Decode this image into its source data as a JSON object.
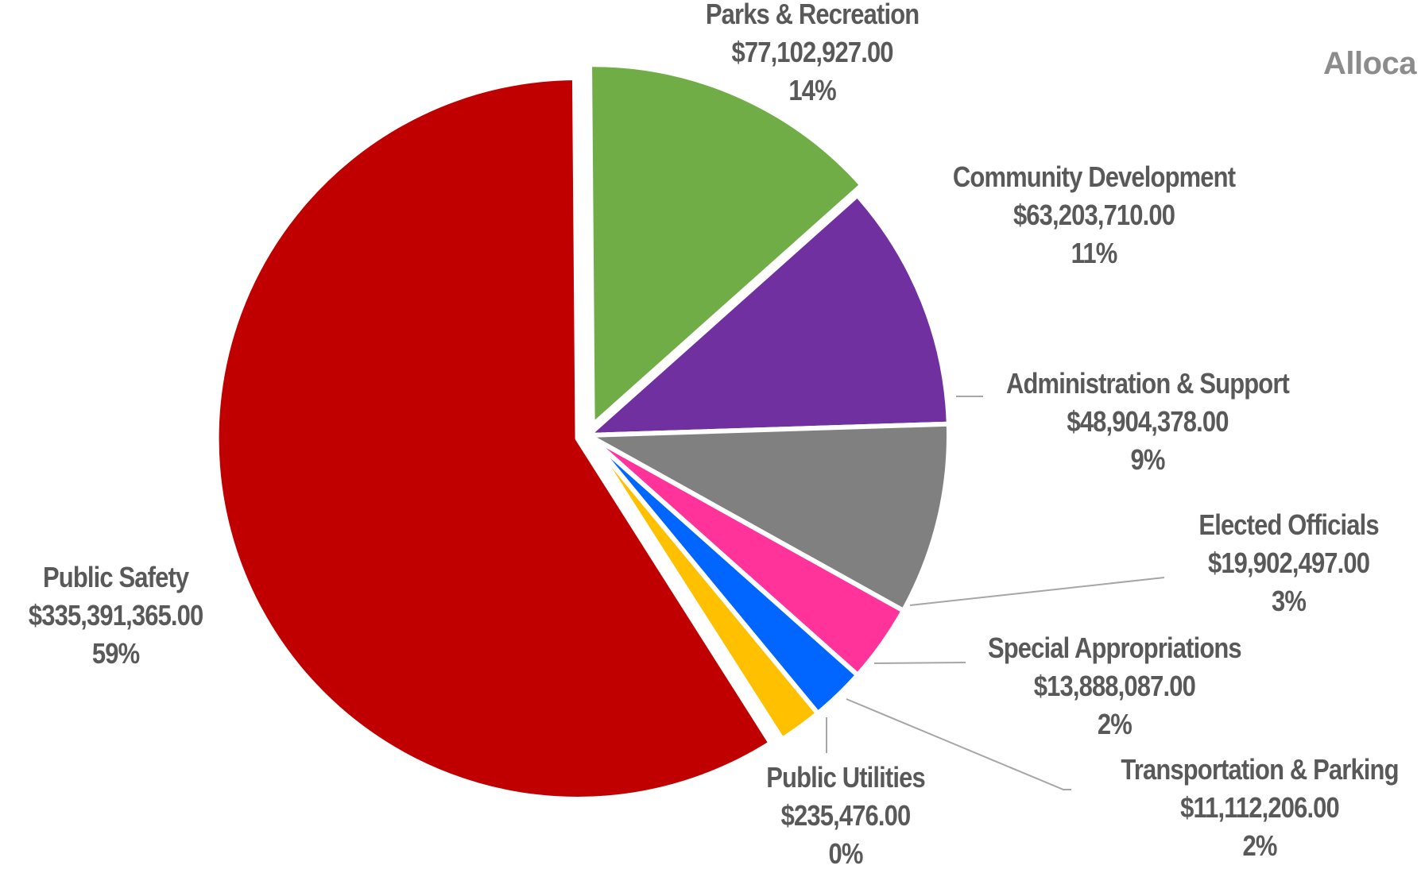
{
  "title": "Alloca",
  "chart_data": {
    "type": "pie",
    "title": "Alloca",
    "slices": [
      {
        "name": "Parks & Recreation",
        "value": 77102927.0,
        "amount": "$77,102,927.00",
        "percent": "14%",
        "color": "#70ad47"
      },
      {
        "name": "Community Development",
        "value": 63203710.0,
        "amount": "$63,203,710.00",
        "percent": "11%",
        "color": "#7030a0"
      },
      {
        "name": "Administration & Support",
        "value": 48904378.0,
        "amount": "$48,904,378.00",
        "percent": "9%",
        "color": "#808080"
      },
      {
        "name": "Elected Officials",
        "value": 19902497.0,
        "amount": "$19,902,497.00",
        "percent": "3%",
        "color": "#ff3399"
      },
      {
        "name": "Special Appropriations",
        "value": 13888087.0,
        "amount": "$13,888,087.00",
        "percent": "2%",
        "color": "#0066ff"
      },
      {
        "name": "Transportation & Parking",
        "value": 11112206.0,
        "amount": "$11,112,206.00",
        "percent": "2%",
        "color": "#ffc000"
      },
      {
        "name": "Public Utilities",
        "value": 235476.0,
        "amount": "$235,476.00",
        "percent": "0%",
        "color": "#00b0f0"
      },
      {
        "name": "Public Safety",
        "value": 335391365.0,
        "amount": "$335,391,365.00",
        "percent": "59%",
        "color": "#c00000"
      }
    ]
  }
}
